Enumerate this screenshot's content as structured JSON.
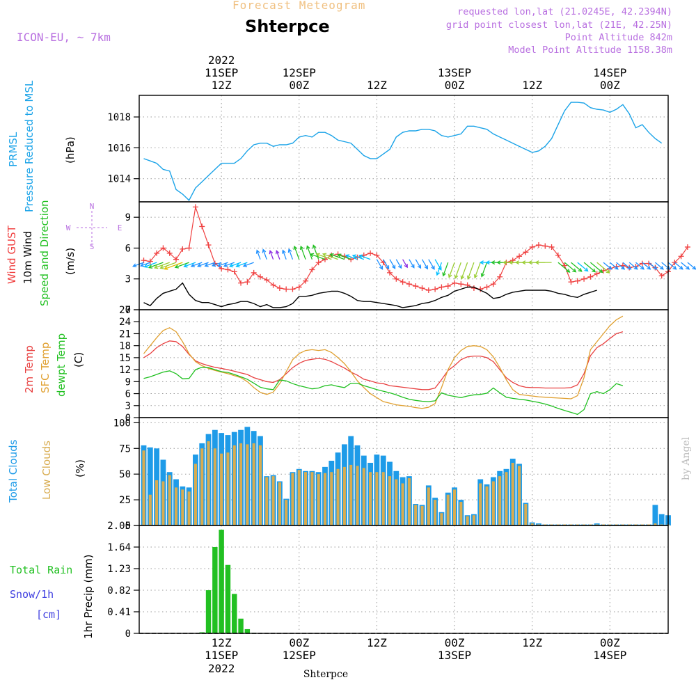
{
  "header": {
    "title": "Forecast Meteogram",
    "station": "Shterpce",
    "model": "ICON-EU, ~ 7km",
    "requested": "requested lon,lat (21.0245E, 42.2394N)",
    "grid_point": "grid point closest lon,lat (21E, 42.25N)",
    "point_altitude": "Point Altitude 842m",
    "model_altitude": "Model Point Altitude 1158.38m"
  },
  "footer": {
    "station": "Shterpce"
  },
  "watermark": "by Angel",
  "time_axis": {
    "top_year": "2022",
    "ticks": [
      {
        "t": 12,
        "hour": "12Z",
        "date": "11SEP",
        "year": "2022"
      },
      {
        "t": 24,
        "hour": "00Z",
        "date": "12SEP"
      },
      {
        "t": 36,
        "hour": "12Z",
        "date": ""
      },
      {
        "t": 48,
        "hour": "00Z",
        "date": "13SEP"
      },
      {
        "t": 60,
        "hour": "12Z",
        "date": ""
      },
      {
        "t": 72,
        "hour": "00Z",
        "date": "14SEP"
      }
    ]
  },
  "panel_labels": {
    "pressure": {
      "l1": "PRMSL",
      "l2": "Pressure Reduced to MSL",
      "unit": "(hPa)"
    },
    "wind": {
      "gust": "Wind GUST",
      "wind10": "10m Wind",
      "speed_dir": "Speed and Direction",
      "unit": "(m/s)",
      "compass_n": "N",
      "compass_s": "S",
      "compass_w": "W",
      "compass_e": "E"
    },
    "temp": {
      "t2m": "2m Temp",
      "sfc": "SFC Temp",
      "dew": "dewpt Temp",
      "unit": "(C)"
    },
    "clouds": {
      "total": "Total Clouds",
      "low": "Low Clouds",
      "unit": "(%)"
    },
    "precip": {
      "rain": "Total  Rain",
      "snow": "Snow/1h",
      "snow_unit": "[cm]",
      "ylabel": "1hr Precip (mm)"
    }
  },
  "colors": {
    "pressure": "#1aa3e8",
    "gust": "#f04040",
    "wind": "#000000",
    "t2m": "#e84040",
    "sfc": "#e0a030",
    "dew": "#20c020",
    "total_cloud": "#1e9be8",
    "low_cloud": "#d8ac50",
    "rain": "#22c022",
    "label_purple": "#b86fe0",
    "snow": "#4040e0"
  },
  "chart_data": [
    {
      "type": "line",
      "name": "pressure",
      "ylim": [
        1012.5,
        1019.4
      ],
      "yticks": [
        1014,
        1016,
        1018
      ],
      "x_start": 0,
      "x_end": 78,
      "series": [
        {
          "values": [
            1015.3,
            1015.15,
            1015.0,
            1014.6,
            1014.5,
            1013.3,
            1013.0,
            1012.6,
            1013.4,
            1013.8,
            1014.2,
            1014.6,
            1015.0,
            1015.0,
            1015.0,
            1015.3,
            1015.8,
            1016.2,
            1016.3,
            1016.3,
            1016.1,
            1016.2,
            1016.2,
            1016.3,
            1016.7,
            1016.8,
            1016.7,
            1017.0,
            1017.0,
            1016.8,
            1016.5,
            1016.4,
            1016.3,
            1015.9,
            1015.5,
            1015.3,
            1015.3,
            1015.6,
            1015.9,
            1016.7,
            1017.0,
            1017.1,
            1017.1,
            1017.2,
            1017.2,
            1017.1,
            1016.8,
            1016.7,
            1016.8,
            1016.9,
            1017.4,
            1017.4,
            1017.3,
            1017.2,
            1016.9,
            1016.7,
            1016.5,
            1016.3,
            1016.1,
            1015.9,
            1015.7,
            1015.8,
            1016.1,
            1016.6,
            1017.5,
            1018.4,
            1018.95,
            1018.95,
            1018.9,
            1018.6,
            1018.5,
            1018.45,
            1018.3,
            1018.5,
            1018.8,
            1018.2,
            1017.3,
            1017.5,
            1017.0,
            1016.6,
            1016.3
          ]
        }
      ]
    },
    {
      "type": "line",
      "name": "wind",
      "ylim": [
        0,
        10.5
      ],
      "yticks": [
        0,
        3,
        6,
        9
      ],
      "series": [
        {
          "name": "Wind GUST",
          "values": [
            4.8,
            4.7,
            5.5,
            6.0,
            5.5,
            4.9,
            5.9,
            6.0,
            10.0,
            8.1,
            6.3,
            4.5,
            4.0,
            3.9,
            3.7,
            2.6,
            2.7,
            3.6,
            3.2,
            2.9,
            2.4,
            2.1,
            2.0,
            2.0,
            2.2,
            2.8,
            3.9,
            4.6,
            4.9,
            5.3,
            5.4,
            5.2,
            4.9,
            5.1,
            5.3,
            5.5,
            5.3,
            4.6,
            3.6,
            3.0,
            2.7,
            2.5,
            2.3,
            2.1,
            1.9,
            2.0,
            2.2,
            2.3,
            2.6,
            2.5,
            2.4,
            2.1,
            2.0,
            2.2,
            2.5,
            3.2,
            4.6,
            4.8,
            5.2,
            5.6,
            6.1,
            6.3,
            6.2,
            6.1,
            5.3,
            4.3,
            2.7,
            2.8,
            3.0,
            3.2,
            3.5,
            3.8,
            4.0,
            4.2,
            4.3,
            4.1,
            4.2,
            4.5,
            4.5,
            4.1,
            3.3,
            3.7,
            4.6,
            5.2,
            6.1
          ]
        },
        {
          "name": "10m Wind",
          "values": [
            0.7,
            0.4,
            1.1,
            1.6,
            1.8,
            2.0,
            2.6,
            1.5,
            0.9,
            0.7,
            0.7,
            0.5,
            0.3,
            0.5,
            0.6,
            0.8,
            0.8,
            0.6,
            0.3,
            0.5,
            0.2,
            0.2,
            0.3,
            0.6,
            1.3,
            1.3,
            1.4,
            1.6,
            1.7,
            1.8,
            1.8,
            1.6,
            1.3,
            0.9,
            0.8,
            0.8,
            0.7,
            0.6,
            0.5,
            0.4,
            0.2,
            0.3,
            0.4,
            0.6,
            0.7,
            0.9,
            1.2,
            1.4,
            1.8,
            2.0,
            2.2,
            2.2,
            1.9,
            1.6,
            1.1,
            1.2,
            1.5,
            1.7,
            1.8,
            1.9,
            1.9,
            1.9,
            1.9,
            1.8,
            1.6,
            1.5,
            1.3,
            1.2,
            1.5,
            1.7,
            1.9
          ]
        }
      ],
      "arrows": {
        "note": "wind direction arrows coloured by speed",
        "colors": [
          "#8a2be2",
          "#1e90ff",
          "#00bfff",
          "#22c022",
          "#9acd32",
          "#e0c000",
          "#ff8c00",
          "#ff4500"
        ]
      }
    },
    {
      "type": "line",
      "name": "temperature",
      "ylim": [
        0,
        27
      ],
      "yticks": [
        0,
        3,
        6,
        9,
        12,
        15,
        18,
        21,
        24,
        27
      ],
      "series": [
        {
          "name": "2m Temp",
          "values": [
            15.0,
            16.0,
            17.5,
            18.5,
            19.2,
            19.0,
            17.8,
            15.8,
            14.2,
            13.5,
            13.0,
            12.6,
            12.3,
            12.0,
            11.6,
            11.2,
            10.8,
            10.0,
            9.5,
            9.0,
            8.8,
            9.5,
            11.0,
            12.5,
            13.6,
            14.3,
            14.6,
            14.8,
            14.6,
            14.0,
            13.2,
            12.4,
            11.4,
            10.6,
            9.6,
            9.2,
            8.7,
            8.5,
            8.0,
            7.8,
            7.6,
            7.4,
            7.2,
            7.0,
            7.0,
            7.4,
            9.5,
            11.8,
            13.0,
            14.5,
            15.2,
            15.4,
            15.4,
            15.0,
            14.0,
            12.0,
            10.0,
            8.8,
            8.0,
            7.6,
            7.5,
            7.5,
            7.4,
            7.4,
            7.4,
            7.4,
            7.5,
            8.2,
            11.0,
            15.5,
            17.5,
            18.5,
            19.8,
            21.0,
            21.5
          ]
        },
        {
          "name": "SFC Temp",
          "values": [
            16.0,
            18.0,
            20.0,
            21.8,
            22.5,
            21.5,
            19.0,
            16.0,
            14.0,
            13.0,
            12.3,
            11.8,
            11.4,
            11.0,
            10.5,
            10.0,
            9.0,
            7.5,
            6.3,
            5.8,
            6.4,
            8.5,
            11.5,
            14.5,
            16.0,
            16.8,
            17.0,
            16.8,
            17.0,
            16.3,
            15.0,
            13.5,
            11.5,
            9.2,
            7.5,
            6.0,
            5.0,
            4.0,
            3.6,
            3.2,
            3.0,
            2.8,
            2.5,
            2.3,
            2.6,
            3.5,
            7.5,
            12.0,
            15.0,
            16.8,
            17.8,
            18.0,
            17.8,
            17.0,
            15.2,
            12.5,
            9.5,
            7.0,
            5.8,
            5.6,
            5.4,
            5.2,
            5.1,
            5.0,
            4.9,
            4.8,
            4.7,
            5.5,
            10.0,
            17.0,
            19.0,
            21.0,
            23.0,
            24.5,
            25.4
          ]
        },
        {
          "name": "dewpt Temp",
          "values": [
            9.8,
            10.2,
            10.8,
            11.4,
            11.7,
            11.0,
            9.7,
            9.8,
            12.0,
            12.6,
            12.5,
            12.0,
            11.5,
            11.3,
            10.8,
            10.2,
            9.6,
            8.6,
            7.6,
            7.2,
            7.0,
            9.4,
            9.2,
            8.5,
            8.0,
            7.6,
            7.2,
            7.4,
            8.0,
            8.2,
            7.8,
            7.5,
            8.6,
            8.6,
            8.0,
            7.5,
            7.0,
            6.6,
            6.2,
            5.7,
            5.1,
            4.6,
            4.3,
            4.1,
            4.0,
            4.2,
            6.2,
            5.6,
            5.3,
            5.0,
            5.4,
            5.7,
            5.8,
            6.1,
            7.4,
            6.2,
            5.1,
            4.8,
            4.6,
            4.4,
            4.1,
            3.8,
            3.4,
            2.9,
            2.3,
            1.8,
            1.3,
            0.8,
            2.0,
            6.0,
            6.5,
            6.0,
            7.0,
            8.5,
            8.0
          ]
        }
      ]
    },
    {
      "type": "bar",
      "name": "clouds",
      "ylim": [
        0,
        105
      ],
      "yticks": [
        0,
        25,
        50,
        75,
        100
      ],
      "series": [
        {
          "name": "Total Clouds",
          "values": [
            78,
            76,
            75,
            64,
            52,
            45,
            38,
            37,
            69,
            80,
            89,
            93,
            90,
            88,
            91,
            93,
            96,
            92,
            87,
            48,
            49,
            43,
            26,
            52,
            55,
            53,
            53,
            52,
            57,
            63,
            71,
            79,
            87,
            78,
            68,
            61,
            69,
            68,
            62,
            53,
            47,
            48,
            21,
            20,
            39,
            27,
            13,
            32,
            37,
            25,
            10,
            11,
            45,
            40,
            47,
            53,
            55,
            65,
            60,
            22,
            3,
            2,
            1,
            1,
            1,
            1,
            1,
            1,
            1,
            1,
            2,
            1,
            1,
            1,
            1,
            1,
            1,
            1,
            1,
            20,
            11,
            10
          ]
        },
        {
          "name": "Low Clouds",
          "values": [
            73,
            30,
            44,
            43,
            49,
            37,
            35,
            33,
            60,
            75,
            82,
            75,
            70,
            71,
            78,
            80,
            79,
            80,
            78,
            47,
            48,
            42,
            25,
            51,
            54,
            52,
            52,
            50,
            51,
            52,
            55,
            57,
            59,
            58,
            56,
            52,
            52,
            52,
            48,
            45,
            41,
            46,
            20,
            19,
            37,
            25,
            12,
            30,
            35,
            23,
            9,
            10,
            41,
            38,
            43,
            48,
            52,
            61,
            58,
            21,
            2,
            1,
            1,
            1,
            1,
            1,
            1,
            1,
            1,
            1,
            1,
            1,
            1,
            1,
            1,
            1,
            1,
            1,
            1,
            2,
            1,
            1
          ]
        }
      ]
    },
    {
      "type": "bar",
      "name": "precipitation",
      "ylim": [
        0,
        2.05
      ],
      "yticks": [
        0,
        0.41,
        0.82,
        1.23,
        1.64,
        2.05
      ],
      "series": [
        {
          "name": "Total Rain",
          "values": [
            0,
            0,
            0,
            0,
            0,
            0,
            0,
            0,
            0,
            0.02,
            0.82,
            1.64,
            1.97,
            1.3,
            0.75,
            0.28,
            0.08,
            0.01,
            0,
            0,
            0,
            0,
            0,
            0,
            0,
            0,
            0,
            0,
            0,
            0,
            0,
            0,
            0,
            0,
            0,
            0,
            0,
            0,
            0,
            0,
            0,
            0,
            0,
            0,
            0,
            0,
            0,
            0,
            0,
            0,
            0,
            0,
            0,
            0,
            0,
            0,
            0,
            0,
            0,
            0,
            0,
            0,
            0,
            0,
            0,
            0,
            0,
            0,
            0,
            0,
            0,
            0,
            0,
            0,
            0,
            0,
            0,
            0,
            0,
            0
          ]
        }
      ]
    }
  ]
}
